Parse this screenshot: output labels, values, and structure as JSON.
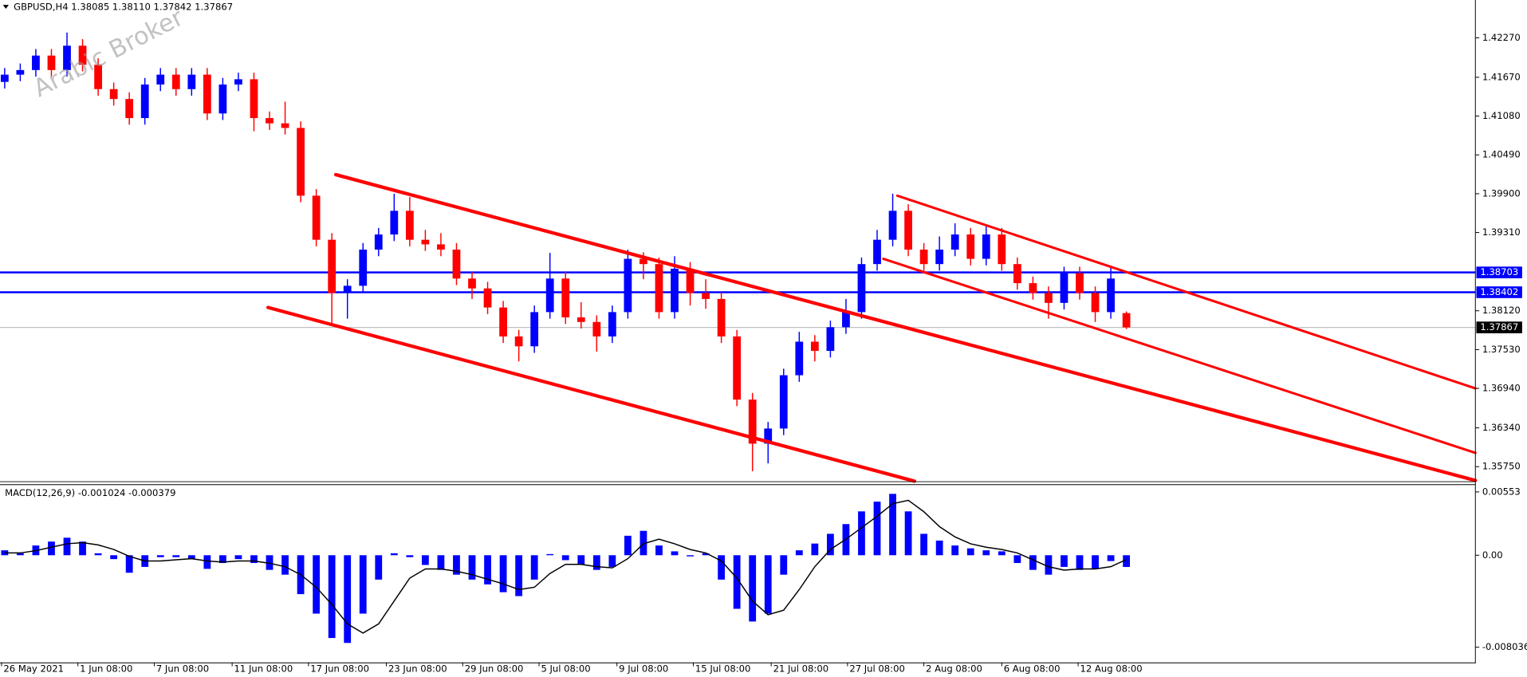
{
  "chart_data": {
    "type": "candlestick",
    "header": {
      "symbol": "GBPUSD,H4",
      "values": [
        "1.38085",
        "1.38110",
        "1.37842",
        "1.37867"
      ]
    },
    "watermark": "Arabic Broker",
    "bull_color": "#0000ff",
    "bear_color": "#ff0000",
    "ohlc": [
      [
        1.416,
        1.4181,
        1.415,
        1.4171
      ],
      [
        1.4171,
        1.4188,
        1.4161,
        1.4178
      ],
      [
        1.4178,
        1.421,
        1.4168,
        1.42
      ],
      [
        1.42,
        1.421,
        1.4168,
        1.4178
      ],
      [
        1.4178,
        1.4235,
        1.4168,
        1.4215
      ],
      [
        1.4215,
        1.4225,
        1.4176,
        1.4186
      ],
      [
        1.4186,
        1.4196,
        1.4139,
        1.4149
      ],
      [
        1.4149,
        1.4159,
        1.4124,
        1.4134
      ],
      [
        1.4134,
        1.4144,
        1.4095,
        1.4105
      ],
      [
        1.4105,
        1.4166,
        1.4095,
        1.4156
      ],
      [
        1.4156,
        1.4181,
        1.4146,
        1.4171
      ],
      [
        1.4171,
        1.4181,
        1.4139,
        1.4149
      ],
      [
        1.4149,
        1.4181,
        1.4139,
        1.4171
      ],
      [
        1.4171,
        1.4181,
        1.4102,
        1.4112
      ],
      [
        1.4112,
        1.4166,
        1.4102,
        1.4156
      ],
      [
        1.4156,
        1.4174,
        1.4146,
        1.4164
      ],
      [
        1.4164,
        1.4174,
        1.4085,
        1.4105
      ],
      [
        1.4105,
        1.4115,
        1.4087,
        1.4097
      ],
      [
        1.4097,
        1.413,
        1.408,
        1.409
      ],
      [
        1.409,
        1.41,
        1.3977,
        1.3987
      ],
      [
        1.3987,
        1.3997,
        1.391,
        1.392
      ],
      [
        1.392,
        1.393,
        1.379,
        1.3839
      ],
      [
        1.3839,
        1.386,
        1.38,
        1.385
      ],
      [
        1.385,
        1.3915,
        1.384,
        1.3905
      ],
      [
        1.3905,
        1.3938,
        1.3895,
        1.3928
      ],
      [
        1.3928,
        1.399,
        1.3918,
        1.3964
      ],
      [
        1.3964,
        1.3985,
        1.391,
        1.392
      ],
      [
        1.392,
        1.3935,
        1.3903,
        1.3913
      ],
      [
        1.3913,
        1.393,
        1.3895,
        1.3905
      ],
      [
        1.3905,
        1.3915,
        1.3851,
        1.3861
      ],
      [
        1.3861,
        1.3871,
        1.383,
        1.3846
      ],
      [
        1.3846,
        1.3856,
        1.3807,
        1.3817
      ],
      [
        1.3817,
        1.3827,
        1.3763,
        1.3773
      ],
      [
        1.3773,
        1.3783,
        1.3735,
        1.3758
      ],
      [
        1.3758,
        1.382,
        1.3748,
        1.381
      ],
      [
        1.381,
        1.39,
        1.38,
        1.3861
      ],
      [
        1.3861,
        1.3871,
        1.3792,
        1.3802
      ],
      [
        1.3802,
        1.3825,
        1.3785,
        1.3795
      ],
      [
        1.3795,
        1.3805,
        1.375,
        1.3773
      ],
      [
        1.3773,
        1.382,
        1.3763,
        1.381
      ],
      [
        1.381,
        1.3905,
        1.38,
        1.3891
      ],
      [
        1.3891,
        1.3901,
        1.386,
        1.3883
      ],
      [
        1.3883,
        1.3893,
        1.38,
        1.381
      ],
      [
        1.381,
        1.3895,
        1.38,
        1.3876
      ],
      [
        1.3876,
        1.3886,
        1.382,
        1.3839
      ],
      [
        1.3839,
        1.386,
        1.3815,
        1.383
      ],
      [
        1.383,
        1.384,
        1.3763,
        1.3773
      ],
      [
        1.3773,
        1.3783,
        1.3667,
        1.3677
      ],
      [
        1.3677,
        1.3687,
        1.3568,
        1.361
      ],
      [
        1.361,
        1.3643,
        1.358,
        1.3633
      ],
      [
        1.3633,
        1.3724,
        1.3623,
        1.3714
      ],
      [
        1.3714,
        1.378,
        1.3704,
        1.3765
      ],
      [
        1.3765,
        1.3775,
        1.3735,
        1.3751
      ],
      [
        1.3751,
        1.3797,
        1.3741,
        1.3787
      ],
      [
        1.3787,
        1.383,
        1.3777,
        1.381
      ],
      [
        1.381,
        1.3893,
        1.38,
        1.3883
      ],
      [
        1.3883,
        1.3935,
        1.3873,
        1.392
      ],
      [
        1.392,
        1.399,
        1.391,
        1.3964
      ],
      [
        1.3964,
        1.3974,
        1.3895,
        1.3905
      ],
      [
        1.3905,
        1.3915,
        1.3873,
        1.3883
      ],
      [
        1.3883,
        1.3925,
        1.3873,
        1.3905
      ],
      [
        1.3905,
        1.3945,
        1.3895,
        1.3928
      ],
      [
        1.3928,
        1.3938,
        1.3881,
        1.3891
      ],
      [
        1.3891,
        1.394,
        1.3881,
        1.3928
      ],
      [
        1.3928,
        1.3938,
        1.3873,
        1.3883
      ],
      [
        1.3883,
        1.3893,
        1.3844,
        1.3854
      ],
      [
        1.3854,
        1.3864,
        1.3829,
        1.3839
      ],
      [
        1.3839,
        1.3849,
        1.38,
        1.3824
      ],
      [
        1.3824,
        1.3879,
        1.3814,
        1.3869
      ],
      [
        1.3869,
        1.3879,
        1.3829,
        1.3839
      ],
      [
        1.3839,
        1.3849,
        1.3795,
        1.381
      ],
      [
        1.381,
        1.388,
        1.38,
        1.3861
      ],
      [
        1.38085,
        1.3811,
        1.37842,
        1.37867
      ]
    ],
    "xlim": [
      -0.3,
      94.4
    ],
    "xticks": [
      {
        "value": -0.2,
        "label": "26 May 2021"
      },
      {
        "value": 4.7,
        "label": "1 Jun 08:00"
      },
      {
        "value": 9.6,
        "label": "7 Jun 08:00"
      },
      {
        "value": 14.6,
        "label": "11 Jun 08:00"
      },
      {
        "value": 19.5,
        "label": "17 Jun 08:00"
      },
      {
        "value": 24.5,
        "label": "23 Jun 08:00"
      },
      {
        "value": 29.4,
        "label": "29 Jun 08:00"
      },
      {
        "value": 34.3,
        "label": "5 Jul 08:00"
      },
      {
        "value": 39.3,
        "label": "9 Jul 08:00"
      },
      {
        "value": 44.2,
        "label": "15 Jul 08:00"
      },
      {
        "value": 49.2,
        "label": "21 Jul 08:00"
      },
      {
        "value": 54.1,
        "label": "27 Jul 08:00"
      },
      {
        "value": 59.0,
        "label": "2 Aug 08:00"
      },
      {
        "value": 64.0,
        "label": "6 Aug 08:00"
      },
      {
        "value": 68.9,
        "label": "12 Aug 08:00"
      }
    ],
    "ylim": [
      1.35529,
      1.42845
    ],
    "yticks": [
      {
        "value": 1.4227,
        "label": "1.42270"
      },
      {
        "value": 1.4167,
        "label": "1.41670"
      },
      {
        "value": 1.4108,
        "label": "1.41080"
      },
      {
        "value": 1.4049,
        "label": "1.40490"
      },
      {
        "value": 1.399,
        "label": "1.39900"
      },
      {
        "value": 1.3931,
        "label": "1.39310"
      },
      {
        "value": 1.3812,
        "label": "1.38120"
      },
      {
        "value": 1.3753,
        "label": "1.37530"
      },
      {
        "value": 1.3694,
        "label": "1.36940"
      },
      {
        "value": 1.3634,
        "label": "1.36340"
      },
      {
        "value": 1.3575,
        "label": "1.35750"
      }
    ],
    "hlines": [
      {
        "value": 1.38703,
        "label": "1.38703",
        "color": "#0000ff"
      },
      {
        "value": 1.38402,
        "label": "1.38402",
        "color": "#0000ff"
      }
    ],
    "bid": {
      "value": 1.37867,
      "label": "1.37867",
      "color": "#c0c0c0"
    },
    "trendlines": [
      {
        "x": [
          21.25,
          94.4
        ],
        "y": [
          1.4019,
          1.3554
        ],
        "color": "#ff0000"
      },
      {
        "x": [
          16.9,
          58.4
        ],
        "y": [
          1.3817,
          1.3553
        ],
        "color": "#ff0000"
      },
      {
        "x": [
          57.3,
          94.4
        ],
        "y": [
          1.3987,
          1.3694
        ],
        "color": "#ff0000"
      },
      {
        "x": [
          56.4,
          94.4
        ],
        "y": [
          1.3891,
          1.3596
        ],
        "color": "#ff0000"
      }
    ],
    "indicator": {
      "type": "macd",
      "name": "MACD(12,26,9)",
      "ylim": [
        -0.00936,
        0.00621
      ],
      "yticks": [
        0.00553,
        {
          "value": 0,
          "label": "0.00"
        },
        -0.008036
      ],
      "hist": {
        "color": "#0000ff",
        "values": [
          0.00043,
          0.00017,
          0.00085,
          0.00119,
          0.00153,
          0.00119,
          0.00017,
          -0.00034,
          -0.00153,
          -0.00102,
          -0.00017,
          -0.00017,
          -0.00034,
          -0.00119,
          -0.00068,
          -0.00034,
          -0.00068,
          -0.00128,
          -0.0017,
          -0.0034,
          -0.0051,
          -0.00723,
          -0.00766,
          -0.0051,
          -0.00213,
          0.00017,
          -0.00017,
          -0.00085,
          -0.00128,
          -0.0017,
          -0.00213,
          -0.00255,
          -0.00323,
          -0.00357,
          -0.00213,
          0.0001,
          -0.00043,
          -0.00085,
          -0.00128,
          -0.00102,
          0.0017,
          0.00213,
          0.00085,
          0.00034,
          -0.0001,
          0.00017,
          -0.00213,
          -0.00468,
          -0.00579,
          -0.0051,
          -0.0017,
          0.00043,
          0.00102,
          0.00187,
          0.00272,
          0.00383,
          0.00468,
          0.00536,
          0.00383,
          0.00187,
          0.00128,
          0.00085,
          0.0006,
          0.00043,
          0.00034,
          -0.00068,
          -0.00128,
          -0.0017,
          -0.00102,
          -0.00128,
          -0.00119,
          -0.00051,
          -0.001024
        ]
      },
      "signal": {
        "color": "#000000",
        "values": [
          0.0002,
          0.0002,
          0.0004,
          0.0007,
          0.001,
          0.0011,
          0.0009,
          0.0005,
          -0.0001,
          -0.0005,
          -0.0005,
          -0.0004,
          -0.0003,
          -0.0005,
          -0.0006,
          -0.0005,
          -0.0005,
          -0.0007,
          -0.001,
          -0.0017,
          -0.0028,
          -0.0043,
          -0.006,
          -0.0068,
          -0.006,
          -0.004,
          -0.002,
          -0.0012,
          -0.0012,
          -0.0014,
          -0.0017,
          -0.0021,
          -0.0025,
          -0.003,
          -0.0028,
          -0.0016,
          -0.0008,
          -0.0008,
          -0.001,
          -0.0011,
          -0.0003,
          0.001,
          0.0014,
          0.001,
          0.0005,
          0.0002,
          -0.0005,
          -0.002,
          -0.004,
          -0.0052,
          -0.0048,
          -0.003,
          -0.001,
          0.0005,
          0.0014,
          0.0024,
          0.0034,
          0.0045,
          0.0048,
          0.0038,
          0.0025,
          0.0016,
          0.001,
          0.0007,
          0.0005,
          0.0002,
          -0.0004,
          -0.001,
          -0.0013,
          -0.0012,
          -0.0012,
          -0.001,
          -0.000379
        ]
      }
    }
  }
}
